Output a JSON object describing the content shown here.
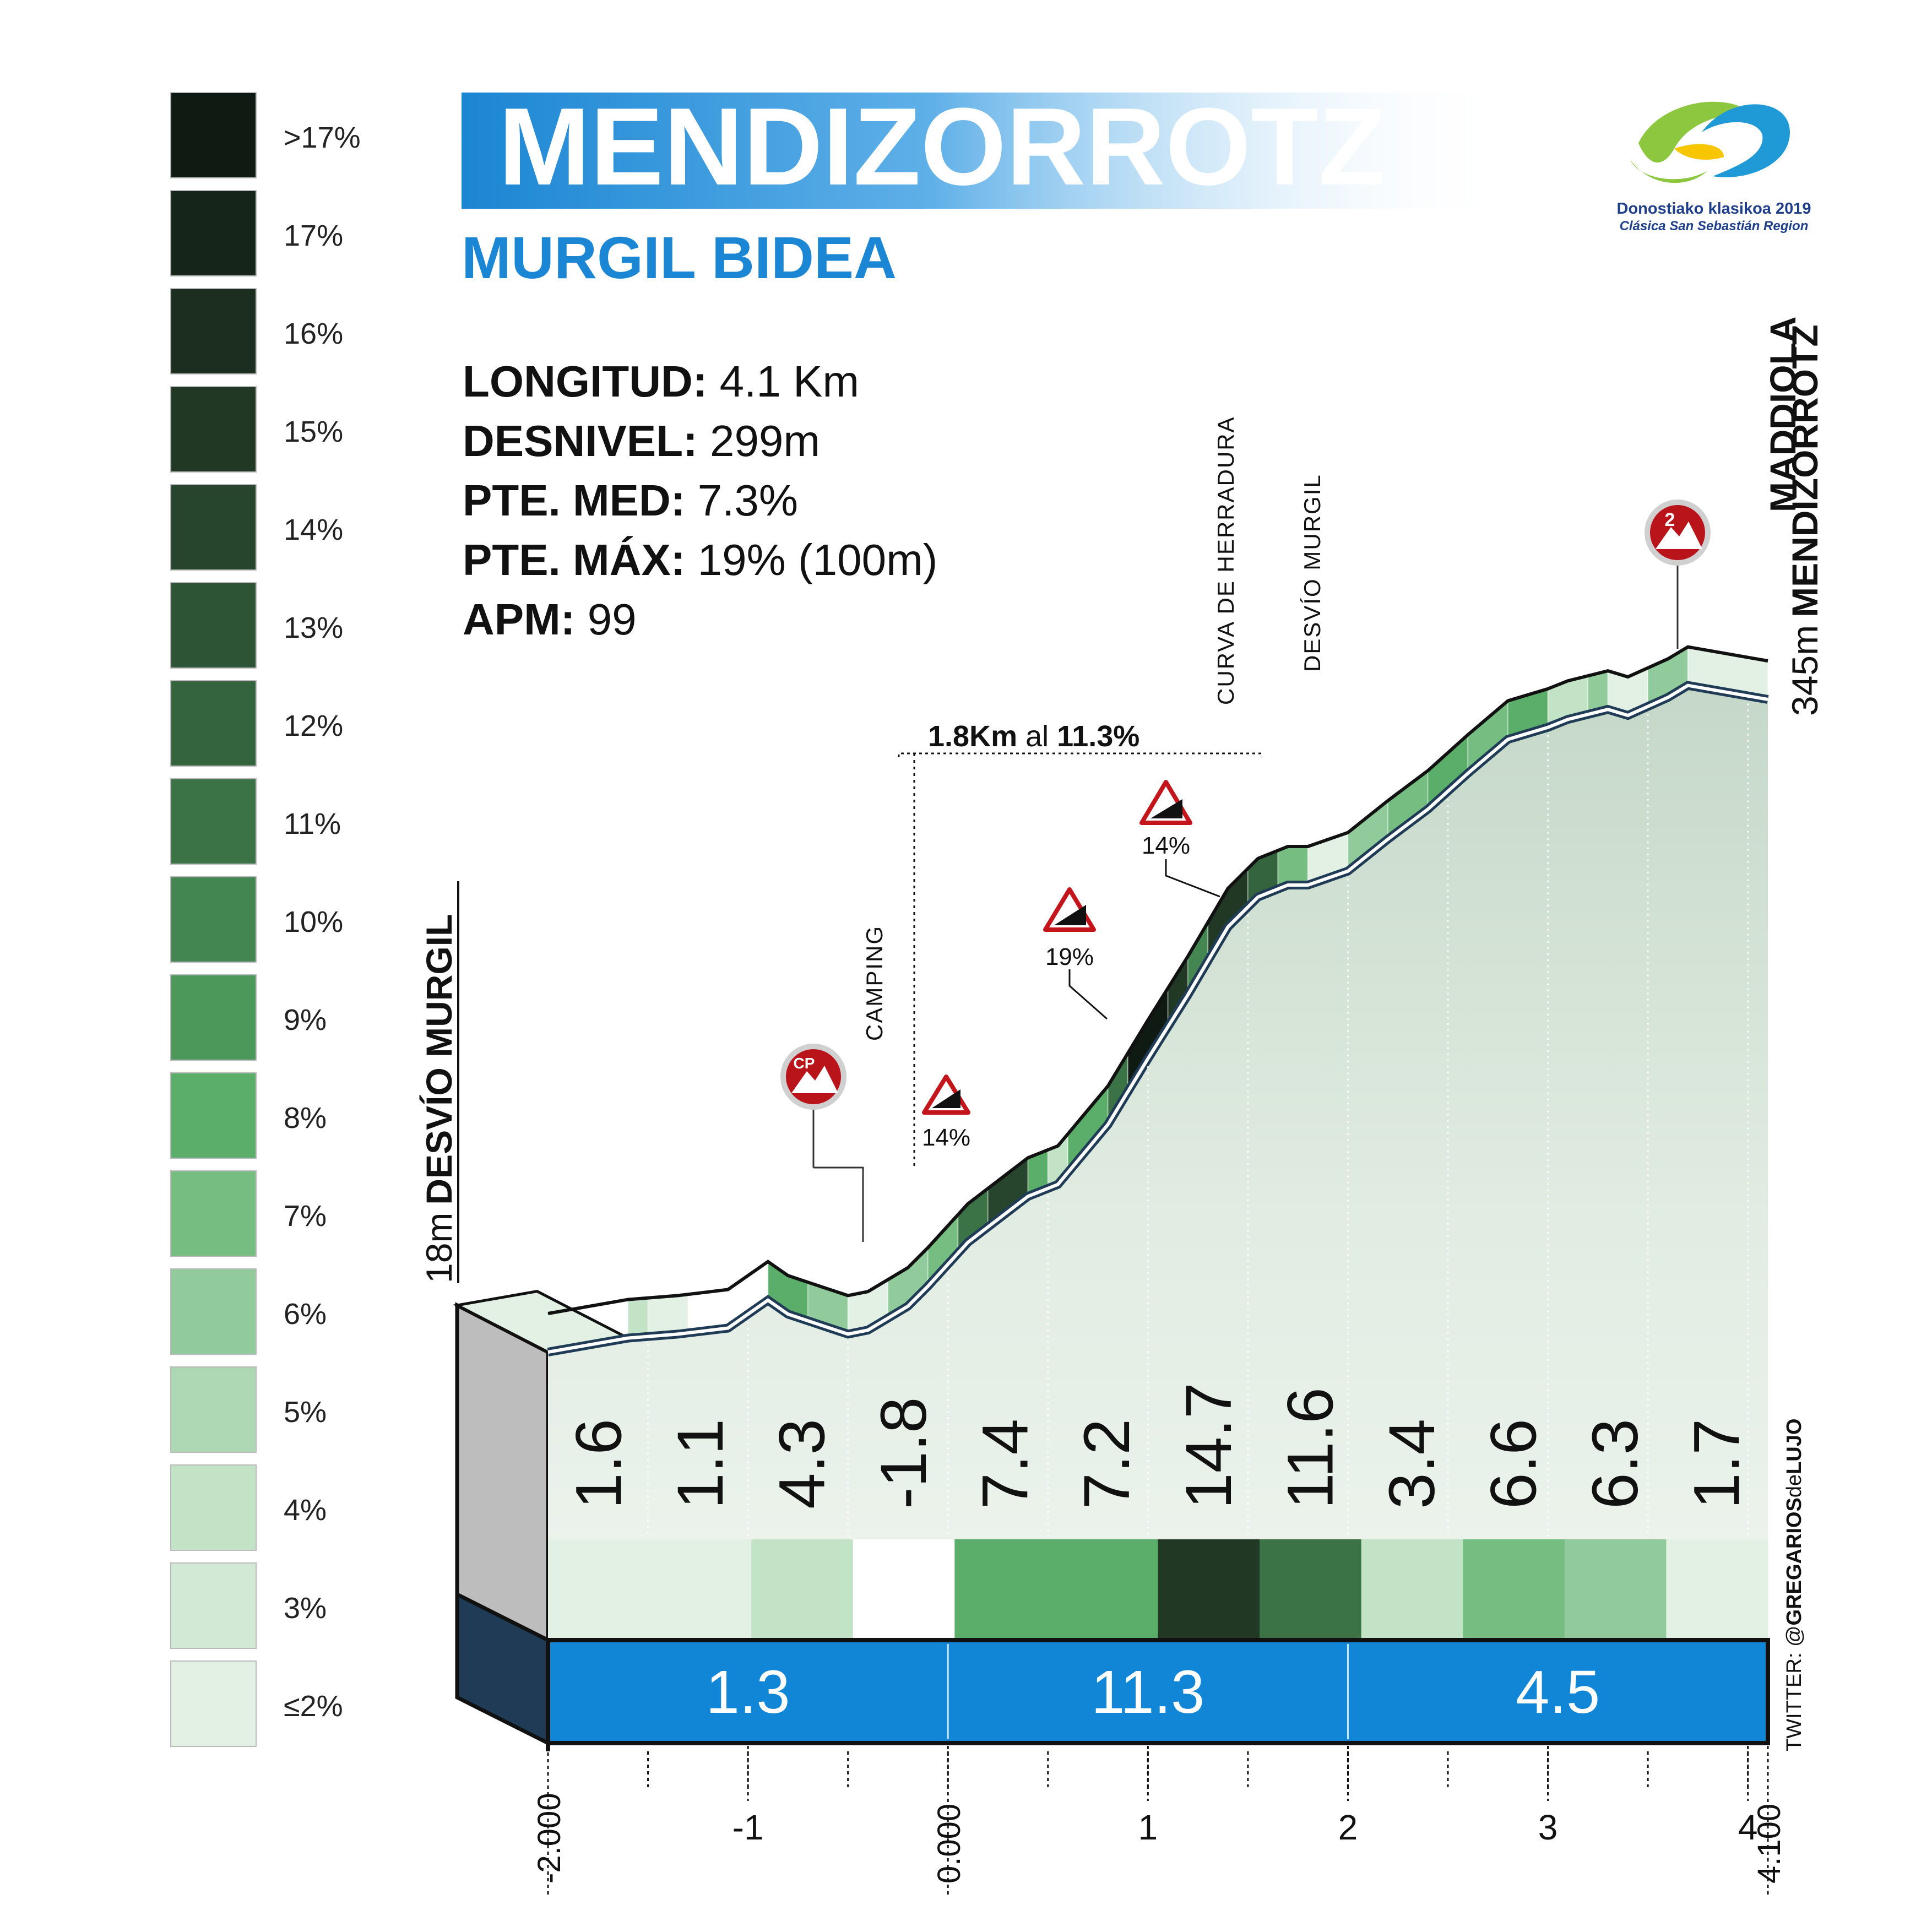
{
  "title": "MENDIZORROTZ",
  "subtitle": "MURGIL  BIDEA",
  "stats": [
    {
      "label": "LONGITUD:",
      "value": " 4.1 Km"
    },
    {
      "label": "DESNIVEL:",
      "value": " 299m"
    },
    {
      "label": "PTE. MED:",
      "value": " 7.3%"
    },
    {
      "label": "PTE. MÁX:",
      "value": " 19% (100m)"
    },
    {
      "label": "APM:",
      "value": " 99"
    }
  ],
  "logo": {
    "line1": "Donostiako klasikoa 2019",
    "line2": "Clásica San Sebastián Region",
    "colors": [
      "#1f9ad6",
      "#8dc63f",
      "#f7c600"
    ]
  },
  "legend": [
    {
      "label": ">17%",
      "color": "#0f1a12"
    },
    {
      "label": "17%",
      "color": "#162519"
    },
    {
      "label": "16%",
      "color": "#1b2e1f"
    },
    {
      "label": "15%",
      "color": "#213825"
    },
    {
      "label": "14%",
      "color": "#27452c"
    },
    {
      "label": "13%",
      "color": "#2d5434"
    },
    {
      "label": "12%",
      "color": "#34643d"
    },
    {
      "label": "11%",
      "color": "#3b7346"
    },
    {
      "label": "10%",
      "color": "#448651"
    },
    {
      "label": "9%",
      "color": "#4c985b"
    },
    {
      "label": "8%",
      "color": "#5aae69"
    },
    {
      "label": "7%",
      "color": "#76bd82"
    },
    {
      "label": "6%",
      "color": "#91cb9b"
    },
    {
      "label": "5%",
      "color": "#add8b3"
    },
    {
      "label": "4%",
      "color": "#c3e3c7"
    },
    {
      "label": "3%",
      "color": "#d2e9d5"
    },
    {
      "label": "≤2%",
      "color": "#e3f1e4"
    }
  ],
  "annotations": {
    "start": {
      "alt": "18m",
      "name": "DESVÍO MURGIL"
    },
    "finish": {
      "alt": "345m",
      "name": "MENDIZORROTZ",
      "extra": "MADDIOLA"
    },
    "camping": "CAMPING",
    "herradura": "CURVA DE HERRADURA",
    "desvio": "DESVÍO MURGIL",
    "segment": {
      "dist": "1.8Km",
      "word": " al ",
      "grade": "11.3%"
    },
    "signs": [
      "14%",
      "19%",
      "14%"
    ],
    "kom_start": "CP",
    "kom_finish": "2",
    "credit_prefix": "TWITTER: @",
    "credit_bold": "GREGARIOS",
    "credit_mid": "de",
    "credit_end": "LUJO"
  },
  "chart_data": {
    "type": "area",
    "title": "MENDIZORROTZ",
    "xlabel": "",
    "ylabel": "",
    "xlim": [
      -2.0,
      4.1
    ],
    "ylim": [
      18,
      345
    ],
    "x_ticks": [
      "-2.000",
      "-1",
      "0.000",
      "1",
      "2",
      "3",
      "4",
      "4.100"
    ],
    "x_tick_values": [
      -2.0,
      -1,
      0.0,
      1,
      2,
      3,
      4,
      4.1
    ],
    "profile": [
      [
        -2.0,
        18
      ],
      [
        -1.6,
        25
      ],
      [
        -1.35,
        27
      ],
      [
        -1.1,
        30
      ],
      [
        -0.9,
        44
      ],
      [
        -0.8,
        37
      ],
      [
        -0.65,
        32
      ],
      [
        -0.5,
        27
      ],
      [
        -0.4,
        29
      ],
      [
        -0.2,
        41
      ],
      [
        -0.1,
        51
      ],
      [
        0.1,
        73
      ],
      [
        0.4,
        96
      ],
      [
        0.55,
        102
      ],
      [
        0.8,
        132
      ],
      [
        1.0,
        165
      ],
      [
        1.2,
        197
      ],
      [
        1.4,
        231
      ],
      [
        1.55,
        246
      ],
      [
        1.7,
        252
      ],
      [
        1.8,
        252
      ],
      [
        2.0,
        259
      ],
      [
        2.2,
        275
      ],
      [
        2.4,
        290
      ],
      [
        2.6,
        308
      ],
      [
        2.8,
        325
      ],
      [
        3.0,
        331
      ],
      [
        3.1,
        335
      ],
      [
        3.3,
        340
      ],
      [
        3.4,
        337
      ],
      [
        3.6,
        346
      ],
      [
        3.7,
        352
      ],
      [
        4.1,
        345
      ]
    ],
    "km_grades": [
      1.6,
      1.1,
      4.3,
      -1.8,
      7.4,
      7.2,
      14.7,
      11.6,
      3.4,
      6.6,
      6.3,
      1.7
    ],
    "km_grade_colors": [
      "#e3f1e4",
      "#e3f1e4",
      "#c3e3c7",
      "#ffffff",
      "#5aae69",
      "#5aae69",
      "#213825",
      "#3b7346",
      "#c3e3c7",
      "#76bd82",
      "#91cb9b",
      "#e3f1e4"
    ],
    "segments": [
      {
        "from": -2.0,
        "to": 0.0,
        "avg": "1.3"
      },
      {
        "from": 0.0,
        "to": 2.0,
        "avg": "11.3"
      },
      {
        "from": 2.0,
        "to": 4.1,
        "avg": "4.5"
      }
    ],
    "grade_bands": [
      {
        "from": -1.6,
        "to": -1.5,
        "color": "#c3e3c7"
      },
      {
        "from": -1.5,
        "to": -1.3,
        "color": "#e3f1e4"
      },
      {
        "from": -0.9,
        "to": -0.7,
        "color": "#5aae69"
      },
      {
        "from": -0.7,
        "to": -0.5,
        "color": "#91cb9b"
      },
      {
        "from": -0.5,
        "to": -0.3,
        "color": "#e3f1e4"
      },
      {
        "from": -0.3,
        "to": -0.1,
        "color": "#91cb9b"
      },
      {
        "from": -0.1,
        "to": 0.05,
        "color": "#76bd82"
      },
      {
        "from": 0.05,
        "to": 0.2,
        "color": "#3b7346"
      },
      {
        "from": 0.2,
        "to": 0.4,
        "color": "#27452c"
      },
      {
        "from": 0.4,
        "to": 0.5,
        "color": "#5aae69"
      },
      {
        "from": 0.5,
        "to": 0.6,
        "color": "#c3e3c7"
      },
      {
        "from": 0.6,
        "to": 0.8,
        "color": "#5aae69"
      },
      {
        "from": 0.8,
        "to": 0.9,
        "color": "#3b7346"
      },
      {
        "from": 0.9,
        "to": 1.1,
        "color": "#0f1a12"
      },
      {
        "from": 1.1,
        "to": 1.2,
        "color": "#213825"
      },
      {
        "from": 1.2,
        "to": 1.3,
        "color": "#448651"
      },
      {
        "from": 1.3,
        "to": 1.5,
        "color": "#213825"
      },
      {
        "from": 1.5,
        "to": 1.65,
        "color": "#34643d"
      },
      {
        "from": 1.65,
        "to": 1.8,
        "color": "#76bd82"
      },
      {
        "from": 1.8,
        "to": 2.0,
        "color": "#e3f1e4"
      },
      {
        "from": 2.0,
        "to": 2.2,
        "color": "#91cb9b"
      },
      {
        "from": 2.2,
        "to": 2.4,
        "color": "#76bd82"
      },
      {
        "from": 2.4,
        "to": 2.6,
        "color": "#5aae69"
      },
      {
        "from": 2.6,
        "to": 2.8,
        "color": "#76bd82"
      },
      {
        "from": 2.8,
        "to": 3.0,
        "color": "#5aae69"
      },
      {
        "from": 3.0,
        "to": 3.2,
        "color": "#c3e3c7"
      },
      {
        "from": 3.2,
        "to": 3.3,
        "color": "#91cb9b"
      },
      {
        "from": 3.3,
        "to": 3.5,
        "color": "#e3f1e4"
      },
      {
        "from": 3.5,
        "to": 3.7,
        "color": "#91cb9b"
      },
      {
        "from": 3.7,
        "to": 4.1,
        "color": "#e3f1e4"
      }
    ]
  }
}
